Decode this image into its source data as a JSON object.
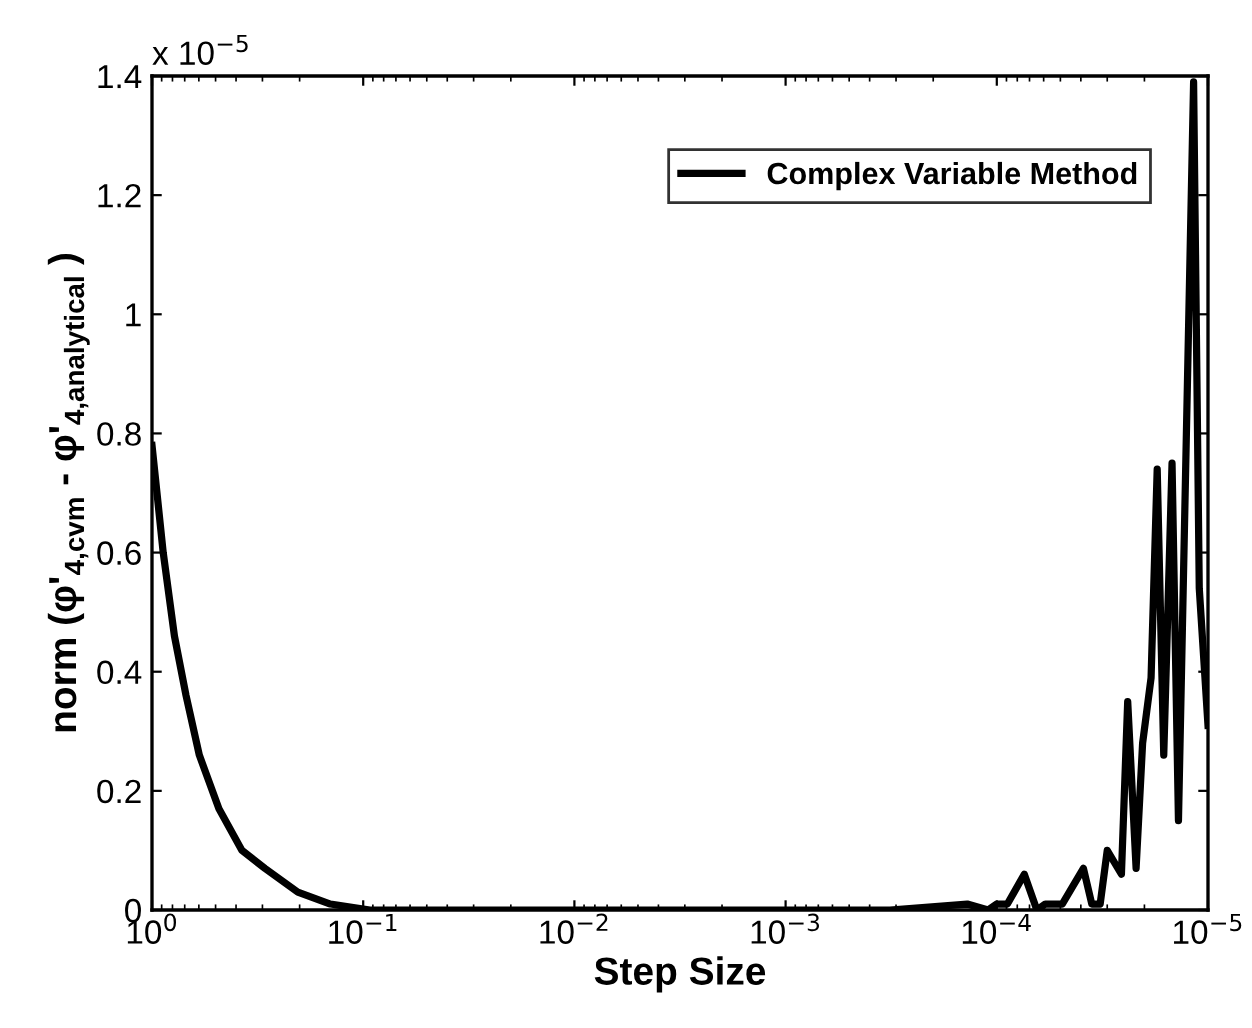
{
  "chart_data": {
    "type": "line",
    "xlabel": "Step Size",
    "ylabel": "norm (φ'$_{4,cvm}$ - φ'$_{4,analytical}$ )",
    "annotations": [
      "x 10$^{−5}$"
    ],
    "log": "x",
    "legend": "top right",
    "grid": false,
    "xlim": [
      1,
      1e-05
    ],
    "ylim": [
      0,
      1.4
    ],
    "xticks": [
      {
        "value": 1,
        "label": "10$^{0}$"
      },
      {
        "value": 0.1,
        "label": "10$^{−1}$"
      },
      {
        "value": 0.01,
        "label": "10$^{−2}$"
      },
      {
        "value": 0.001,
        "label": "10$^{−3}$"
      },
      {
        "value": 0.0001,
        "label": "10$^{−4}$"
      },
      {
        "value": 1e-05,
        "label": "10$^{−5}$"
      }
    ],
    "yticks": [
      0,
      0.2,
      0.4,
      0.6,
      0.8,
      1,
      1.2,
      1.4
    ],
    "series": [
      {
        "name": "Complex Variable Method",
        "color": "#000000",
        "x": [
          1,
          0.885,
          0.783,
          0.69,
          0.597,
          0.482,
          0.375,
          0.292,
          0.204,
          0.143,
          0.093,
          0.03,
          0.003,
          0.00032,
          0.000138,
          0.00011,
          0.0001,
          8.91e-05,
          7.41e-05,
          6.46e-05,
          5.89e-05,
          4.9e-05,
          3.89e-05,
          3.55e-05,
          3.24e-05,
          3e-05,
          2.57e-05,
          2.4e-05,
          2.19e-05,
          2.04e-05,
          1.86e-05,
          1.74e-05,
          1.62e-05,
          1.48e-05,
          1.38e-05,
          1.17e-05,
          1.1e-05,
          1e-05
        ],
        "values": [
          0.78,
          0.6,
          0.46,
          0.36,
          0.26,
          0.17,
          0.1,
          0.07,
          0.03,
          0.01,
          0,
          0,
          0,
          0,
          0.01,
          0,
          0.01,
          0.01,
          0.06,
          0,
          0.01,
          0.01,
          0.07,
          0.01,
          0.01,
          0.1,
          0.06,
          0.35,
          0.07,
          0.28,
          0.39,
          0.74,
          0.26,
          0.75,
          0.15,
          1.39,
          0.54,
          0.31
        ]
      }
    ]
  }
}
